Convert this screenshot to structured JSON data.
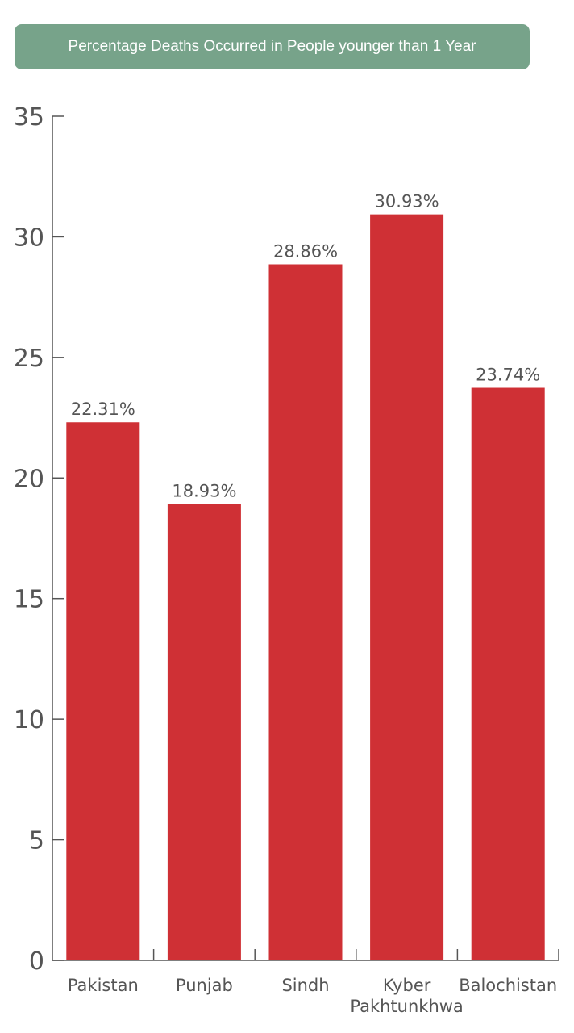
{
  "chart_data": {
    "type": "bar",
    "title": "Percentage Deaths Occurred in People younger than 1 Year",
    "xlabel": "",
    "ylabel": "",
    "categories": [
      "Pakistan",
      "Punjab",
      "Sindh",
      "Kyber Pakhtunkhwa",
      "Balochistan"
    ],
    "category_lines": [
      [
        "Pakistan"
      ],
      [
        "Punjab"
      ],
      [
        "Sindh"
      ],
      [
        "Kyber",
        "Pakhtunkhwa"
      ],
      [
        "Balochistan"
      ]
    ],
    "values": [
      22.31,
      18.93,
      28.86,
      30.93,
      23.74
    ],
    "data_labels": [
      "22.31%",
      "18.93%",
      "28.86%",
      "30.93%",
      "23.74%"
    ],
    "y_ticks": [
      0,
      5,
      10,
      15,
      20,
      25,
      30,
      35
    ],
    "ylim": [
      0,
      35
    ],
    "grid": false,
    "legend": "none",
    "colors": {
      "bar": "#cf3035",
      "title_background": "#77a38a",
      "title_text": "#ffffff",
      "axis": "#555555",
      "label_text": "#555555"
    }
  }
}
